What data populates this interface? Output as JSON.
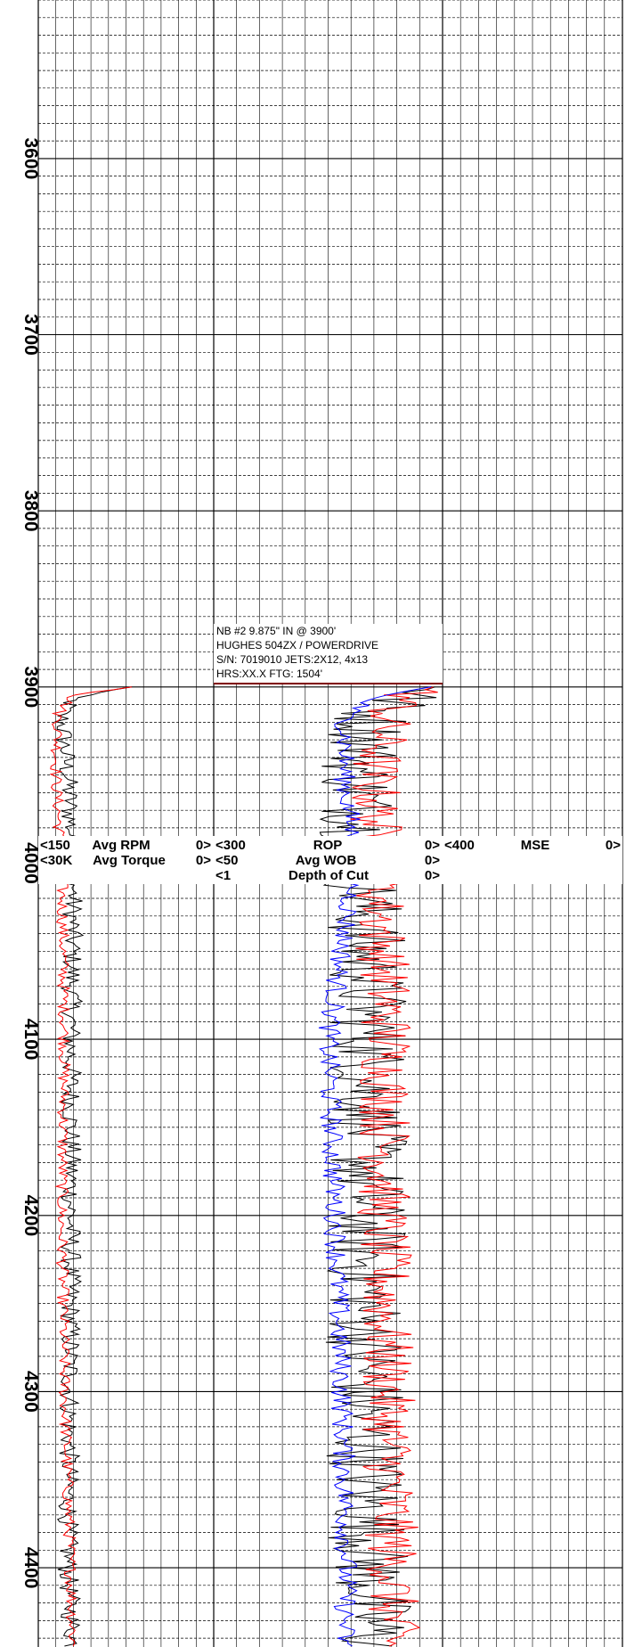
{
  "chart_data": {
    "type": "line",
    "title": "",
    "depth_axis": {
      "ticks": [
        3600,
        3700,
        3800,
        3900,
        4000,
        4100,
        4200,
        4300,
        4400
      ],
      "range": [
        3510,
        4445
      ],
      "grid_lines_per_100": 10
    },
    "bit_record": {
      "line1": "NB #2  9.875\" IN @ 3900'",
      "line2": "HUGHES 504ZX / POWERDRIVE",
      "line3": "S/N: 7019010   JETS:2X12, 4x13",
      "line4": "HRS:XX.X      FTG: 1504'"
    },
    "track1_header": {
      "row1_min": "<150",
      "row1_name": "Avg RPM",
      "row1_max": "0>",
      "row2_min": "<30K",
      "row2_name": "Avg Torque",
      "row2_max": "0>"
    },
    "track2_header": {
      "row1_min": "<300",
      "row1_name": "ROP",
      "row1_max": "0>",
      "row2_min": "<50",
      "row2_name": "Avg WOB",
      "row2_max": "0>",
      "row3_min": "<1",
      "row3_name": "Depth of Cut",
      "row3_max": "0>"
    },
    "track3_header": {
      "row1_min": "<400",
      "row1_name": "MSE",
      "row1_max": "0>"
    },
    "series": [
      {
        "name": "Avg RPM",
        "track": 1,
        "scale": [
          150,
          0
        ],
        "color": "#000000",
        "depth": [
          3900,
          3905,
          3915,
          3950,
          4000,
          4100,
          4200,
          4300,
          4400,
          4445
        ],
        "values": [
          70,
          118,
          130,
          125,
          120,
          122,
          122,
          123,
          125,
          120
        ]
      },
      {
        "name": "Avg Torque",
        "track": 1,
        "scale": [
          30000,
          0
        ],
        "color": "#ff0000",
        "depth": [
          3900,
          3905,
          3915,
          3950,
          4000,
          4100,
          4200,
          4300,
          4400,
          4445
        ],
        "values": [
          14000,
          24000,
          26500,
          27000,
          26000,
          25500,
          26000,
          25500,
          24500,
          24000
        ]
      },
      {
        "name": "ROP",
        "track": 2,
        "scale": [
          300,
          0
        ],
        "color": "#000000",
        "depth": [
          3900,
          3905,
          3915,
          3950,
          4000,
          4100,
          4200,
          4300,
          4400,
          4445
        ],
        "values": [
          10,
          45,
          90,
          110,
          105,
          95,
          100,
          100,
          95,
          90
        ]
      },
      {
        "name": "Avg WOB",
        "track": 2,
        "scale": [
          50,
          0
        ],
        "color": "#ff0000",
        "depth": [
          3900,
          3905,
          3915,
          3950,
          4000,
          4100,
          4200,
          4300,
          4400,
          4445
        ],
        "values": [
          2,
          8,
          12,
          15,
          14,
          12,
          13,
          12,
          11,
          11
        ]
      },
      {
        "name": "Depth of Cut",
        "track": 2,
        "scale": [
          1,
          0
        ],
        "color": "#0000ff",
        "depth": [
          3900,
          3905,
          3915,
          3950,
          4000,
          4100,
          4200,
          4300,
          4400,
          4445
        ],
        "values": [
          0.05,
          0.28,
          0.42,
          0.43,
          0.38,
          0.5,
          0.47,
          0.44,
          0.42,
          0.43
        ]
      }
    ]
  }
}
